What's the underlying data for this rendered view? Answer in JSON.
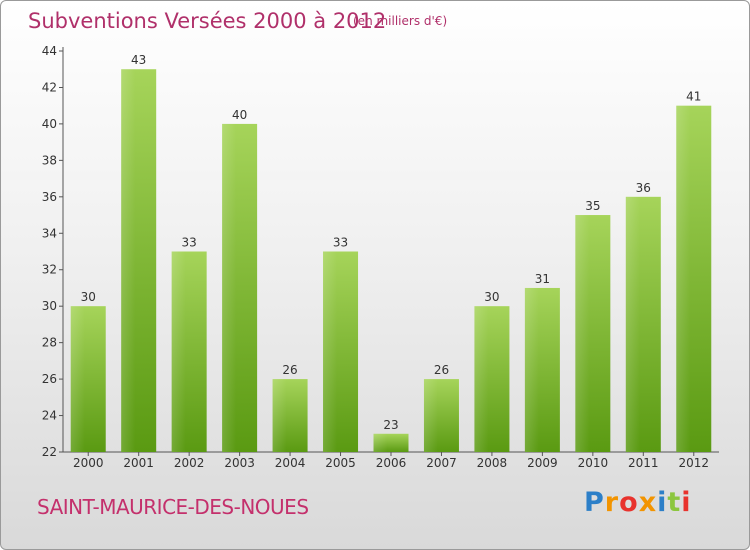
{
  "header": {
    "title": "Subventions Versées 2000 à 2012",
    "subtitle": "(en milliers d'€)"
  },
  "footer": {
    "town": "SAINT-MAURICE-DES-NOUES",
    "logo": {
      "letters": [
        "P",
        "r",
        "o",
        "x",
        "i",
        "t",
        "i"
      ],
      "colors": [
        "#2c7fc8",
        "#f29400",
        "#e8322d",
        "#f29400",
        "#2c7fc8",
        "#8cc63f",
        "#e8322d"
      ]
    }
  },
  "colors": {
    "bar_light": "#a6d45a",
    "bar_dark": "#5a9a12",
    "text": "#b0306a",
    "tick": "#333333"
  },
  "chart_data": {
    "type": "bar",
    "categories": [
      "2000",
      "2001",
      "2002",
      "2003",
      "2004",
      "2005",
      "2006",
      "2007",
      "2008",
      "2009",
      "2010",
      "2011",
      "2012"
    ],
    "values": [
      30,
      43,
      33,
      40,
      26,
      33,
      23,
      26,
      30,
      31,
      35,
      36,
      41
    ],
    "ylim": [
      22,
      44
    ],
    "yticks": [
      22,
      24,
      26,
      28,
      30,
      32,
      34,
      36,
      38,
      40,
      42,
      44
    ],
    "title": "Subventions Versées 2000 à 2012",
    "xlabel": "",
    "ylabel": "",
    "grid": false,
    "legend": "none"
  }
}
